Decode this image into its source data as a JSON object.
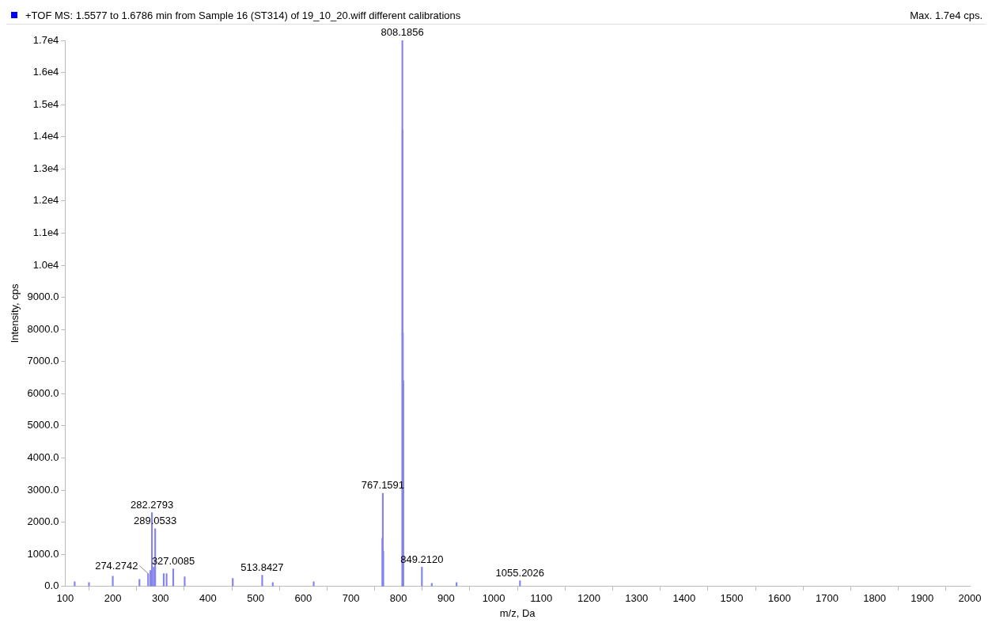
{
  "chart_data": {
    "type": "bar",
    "title": "+TOF MS: 1.5577 to 1.6786 min from Sample 16 (ST314) of 19_10_20.wiff different calibrations",
    "xlabel": "m/z, Da",
    "ylabel": "Intensity, cps",
    "color": "#8484f0",
    "annotations": [
      "Max. 1.7e4 cps.",
      {
        "text": "282.2793",
        "x": 282.2793,
        "y": 2300
      },
      {
        "text": "289.0533",
        "x": 289.0533,
        "y": 1800
      },
      {
        "text": "327.0085",
        "x": 327.0085,
        "y": 550
      },
      {
        "text": "274.2742",
        "x": 274.2742,
        "y": 400
      },
      {
        "text": "513.8427",
        "x": 513.8427,
        "y": 350
      },
      {
        "text": "767.1591",
        "x": 767.1591,
        "y": 2900
      },
      {
        "text": "808.1856",
        "x": 808.1856,
        "y": 17000
      },
      {
        "text": "849.2120",
        "x": 849.212,
        "y": 600
      },
      {
        "text": "1055.2026",
        "x": 1055.2026,
        "y": 180
      }
    ],
    "x": [
      120,
      150,
      200,
      256,
      274.2742,
      279,
      282.2793,
      286,
      289.0533,
      307,
      313,
      327.0085,
      351,
      452,
      513.8427,
      536,
      622,
      766.2,
      767.1591,
      768.2,
      808.1856,
      808.6,
      809.2,
      810.2,
      849.212,
      870,
      922,
      1055.2026
    ],
    "values": [
      150,
      120,
      320,
      220,
      400,
      500,
      2300,
      600,
      1800,
      400,
      400,
      550,
      300,
      250,
      350,
      120,
      150,
      1500,
      2900,
      1100,
      17000,
      14200,
      7900,
      6400,
      600,
      100,
      120,
      180
    ],
    "xlim": [
      100,
      2000
    ],
    "xticks": [
      100,
      200,
      300,
      400,
      500,
      600,
      700,
      800,
      900,
      1000,
      1100,
      1200,
      1300,
      1400,
      1500,
      1600,
      1700,
      1800,
      1900,
      2000
    ],
    "ylim": [
      0,
      17000
    ],
    "yticks": [
      {
        "value": 0,
        "label": "0.0"
      },
      {
        "value": 1000,
        "label": "1000.0"
      },
      {
        "value": 2000,
        "label": "2000.0"
      },
      {
        "value": 3000,
        "label": "3000.0"
      },
      {
        "value": 4000,
        "label": "4000.0"
      },
      {
        "value": 5000,
        "label": "5000.0"
      },
      {
        "value": 6000,
        "label": "6000.0"
      },
      {
        "value": 7000,
        "label": "7000.0"
      },
      {
        "value": 8000,
        "label": "8000.0"
      },
      {
        "value": 9000,
        "label": "9000.0"
      },
      {
        "value": 10000,
        "label": "1.0e4"
      },
      {
        "value": 11000,
        "label": "1.1e4"
      },
      {
        "value": 12000,
        "label": "1.2e4"
      },
      {
        "value": 13000,
        "label": "1.3e4"
      },
      {
        "value": 14000,
        "label": "1.4e4"
      },
      {
        "value": 15000,
        "label": "1.5e4"
      },
      {
        "value": 16000,
        "label": "1.6e4"
      },
      {
        "value": 17000,
        "label": "1.7e4"
      }
    ],
    "grid": false
  }
}
